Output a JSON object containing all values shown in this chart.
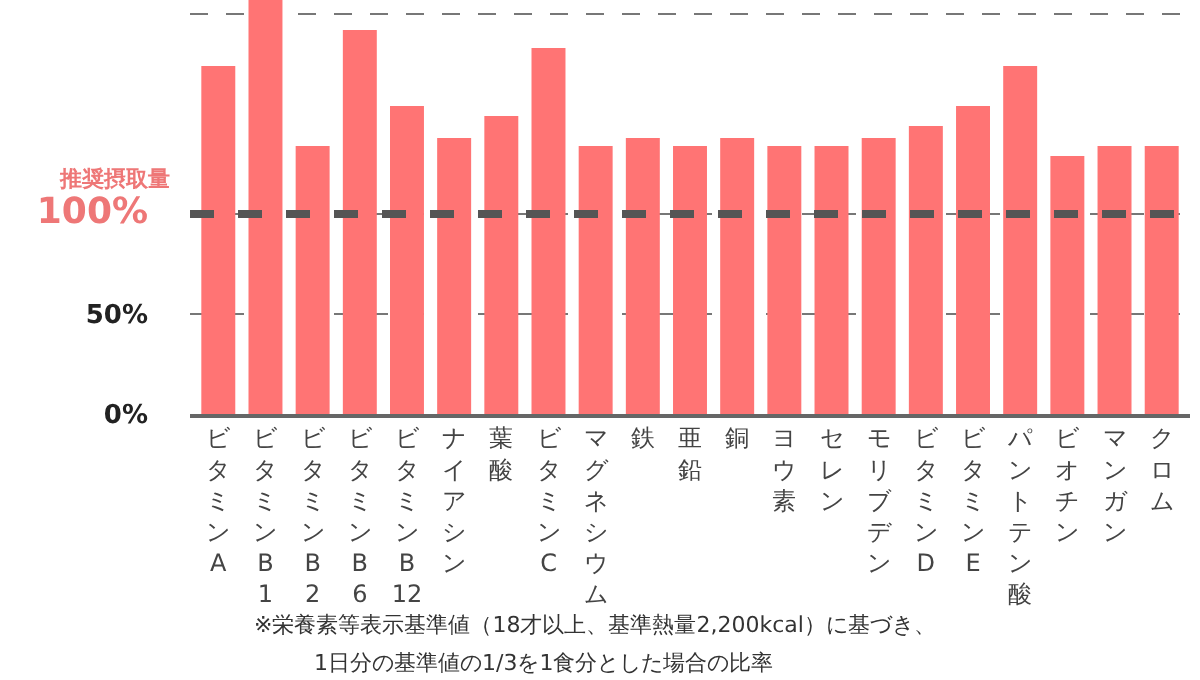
{
  "chart_data": {
    "type": "bar",
    "categories": [
      "ビタミンA",
      "ビタミンB1",
      "ビタミンB2",
      "ビタミンB6",
      "ビタミンB12",
      "ナイアシン",
      "葉酸",
      "ビタミンC",
      "マグネシウム",
      "鉄",
      "亜鉛",
      "銅",
      "ヨウ素",
      "セレン",
      "モリブデン",
      "ビタミンD",
      "ビタミンE",
      "パントテン酸",
      "ビオチン",
      "マンガン",
      "クロム"
    ],
    "values": [
      174,
      207,
      134,
      192,
      154,
      138,
      149,
      183,
      134,
      138,
      134,
      138,
      134,
      134,
      138,
      144,
      154,
      174,
      129,
      134,
      134
    ],
    "color": "#ff7474",
    "ylim": [
      0,
      207
    ],
    "yticks": [
      {
        "value": 0,
        "label": "0%"
      },
      {
        "value": 50,
        "label": "50%"
      },
      {
        "value": 100,
        "label": "100%"
      },
      {
        "value": 200,
        "label": null
      }
    ],
    "grid": "y",
    "ref_lines": [
      {
        "axis": "y",
        "value": 100,
        "label": "推奨摂取量",
        "color": "#555555",
        "line_style": "dashed"
      }
    ],
    "annotations": [
      "※栄養素等表示基準値（18才以上、基準熱量2,200kcal）に基づき、",
      "1日分の基準値の1/3を1食分とした場合の比率"
    ]
  }
}
